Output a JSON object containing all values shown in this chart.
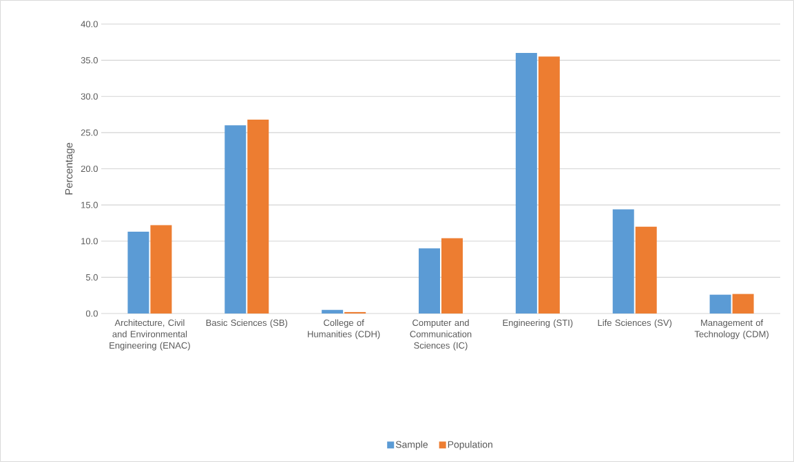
{
  "chart_data": {
    "type": "bar",
    "ylabel": "Percentage",
    "categories": [
      "Architecture, Civil and Environmental Engineering (ENAC)",
      "Basic Sciences (SB)",
      "College of Humanities (CDH)",
      "Computer and Communication Sciences (IC)",
      "Engineering (STI)",
      "Life Sciences (SV)",
      "Management of Technology (CDM)"
    ],
    "series": [
      {
        "name": "Sample",
        "color": "#5b9bd5",
        "values": [
          11.3,
          26.0,
          0.5,
          9.0,
          36.0,
          14.4,
          2.6
        ]
      },
      {
        "name": "Population",
        "color": "#ed7d31",
        "values": [
          12.2,
          26.8,
          0.2,
          10.4,
          35.5,
          12.0,
          2.7
        ]
      }
    ],
    "ylim": [
      0,
      40
    ],
    "yticks": [
      {
        "value": 0,
        "label": "0.0"
      },
      {
        "value": 5,
        "label": "5.0"
      },
      {
        "value": 10,
        "label": "10.0"
      },
      {
        "value": 15,
        "label": "15.0"
      },
      {
        "value": 20,
        "label": "20.0"
      },
      {
        "value": 25,
        "label": "25.0"
      },
      {
        "value": 30,
        "label": "30.0"
      },
      {
        "value": 35,
        "label": "35.0"
      },
      {
        "value": 40,
        "label": "40.0"
      }
    ],
    "grid": "y",
    "legend": "bottom"
  }
}
